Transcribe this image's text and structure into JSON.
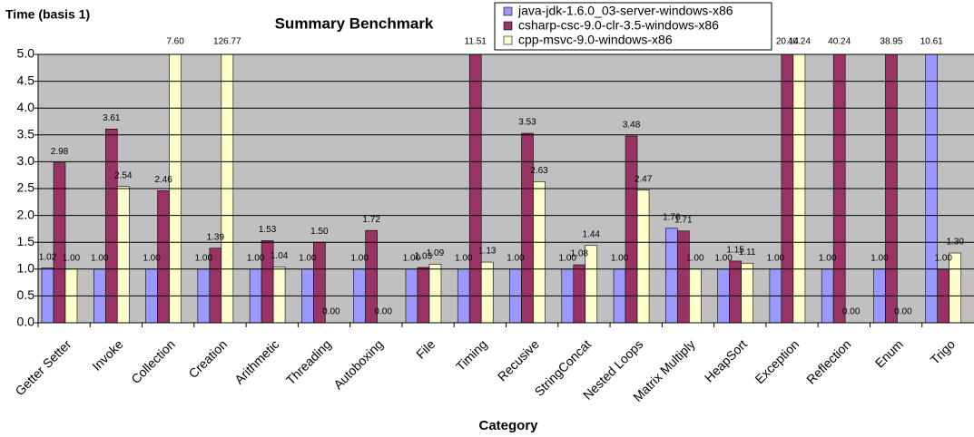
{
  "chart_data": {
    "type": "bar",
    "title": "Summary Benchmark",
    "y_label": "Time (basis 1)",
    "x_label": "Category",
    "categories": [
      "Getter Setter",
      "Invoke",
      "Collection",
      "Creation",
      "Arithmetic",
      "Threading",
      "Autoboxing",
      "File",
      "Timing",
      "Recusive",
      "StringConcat",
      "Nested Loops",
      "Matrix Multiply",
      "HeapSort",
      "Exception",
      "Reflection",
      "Enum",
      "Trigo"
    ],
    "series": [
      {
        "name": "java-jdk-1.6.0_03-server-windows-x86",
        "color": "#9999ff",
        "values": [
          1.02,
          1.0,
          1.0,
          1.0,
          1.0,
          1.0,
          1.0,
          1.0,
          1.0,
          1.0,
          1.0,
          1.0,
          1.76,
          1.0,
          1.0,
          1.0,
          1.0,
          10.61
        ],
        "value_labels": [
          "1.02",
          "1.00",
          "1.00",
          "1.00",
          "1.00",
          "1.00",
          "1.00",
          "1.00",
          "1.00",
          "1.00",
          "1.00",
          "1.00",
          "1.76",
          "1.00",
          "1.00",
          "1.00",
          "1.00",
          "10.61"
        ]
      },
      {
        "name": "csharp-csc-9.0-clr-3.5-windows-x86",
        "color": "#993366",
        "values": [
          2.98,
          3.61,
          2.46,
          1.39,
          1.53,
          1.5,
          1.72,
          1.03,
          11.51,
          3.53,
          1.08,
          3.48,
          1.71,
          1.15,
          20.14,
          40.24,
          38.95,
          1.0
        ],
        "value_labels": [
          "2.98",
          "3.61",
          "2.46",
          "1.39",
          "1.53",
          "1.50",
          "1.72",
          "1.03",
          "11.51",
          "3.53",
          "1.08",
          "3.48",
          "1.71",
          "1.15",
          "20.14",
          "40.24",
          "38.95",
          "1.00"
        ]
      },
      {
        "name": "cpp-msvc-9.0-windows-x86",
        "color": "#ffffcc",
        "values": [
          1.0,
          2.54,
          7.6,
          126.77,
          1.04,
          0.0,
          0.0,
          1.09,
          1.13,
          2.63,
          1.44,
          2.47,
          1.0,
          1.11,
          40.24,
          0.0,
          0.0,
          1.3
        ],
        "value_labels": [
          "1.00",
          "2.54",
          "7.60",
          "126.77",
          "1.04",
          "0.00",
          "0.00",
          "1.09",
          "1.13",
          "2.63",
          "1.44",
          "2.47",
          "1.00",
          "1.11",
          "40.24",
          "0.00",
          "0.00",
          "1.30"
        ]
      }
    ],
    "ylim": [
      0,
      5
    ],
    "yticks": [
      {
        "value": 0,
        "label": "0.0"
      },
      {
        "value": 0.5,
        "label": "0.5"
      },
      {
        "value": 1,
        "label": "1.0"
      },
      {
        "value": 1.5,
        "label": "1.5"
      },
      {
        "value": 2,
        "label": "2.0"
      },
      {
        "value": 2.5,
        "label": "2.5"
      },
      {
        "value": 3,
        "label": "3.0"
      },
      {
        "value": 3.5,
        "label": "3.5"
      },
      {
        "value": 4,
        "label": "4.0"
      },
      {
        "value": 4.5,
        "label": "4.5"
      },
      {
        "value": 5,
        "label": "5.0"
      }
    ],
    "grid": true
  }
}
